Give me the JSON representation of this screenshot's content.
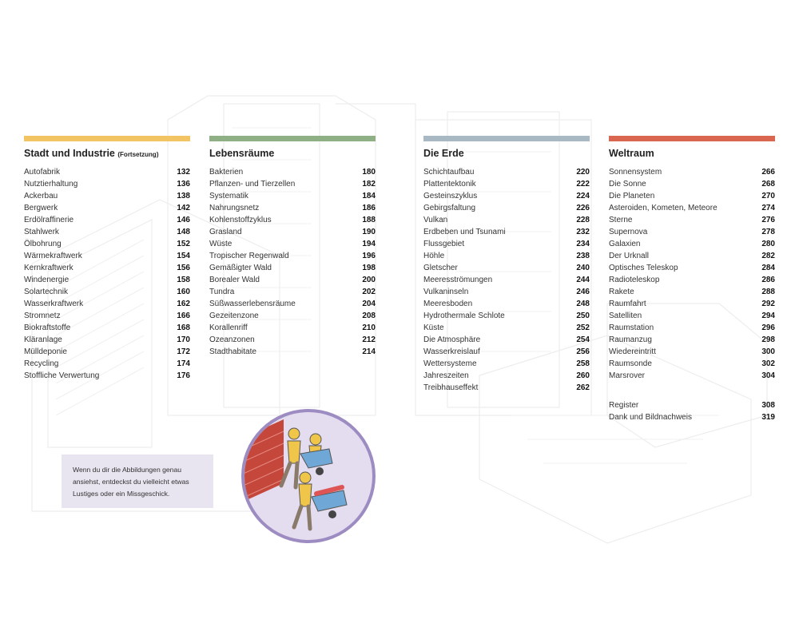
{
  "colors": {
    "stadt": "#f2c463",
    "lebensraeume": "#8fb085",
    "erde": "#a9b9c4",
    "weltraum": "#d9664f",
    "note_bg": "#e8e4f0",
    "circle_border": "#9d8cc2",
    "circle_fill": "#e4dcef"
  },
  "sections": [
    {
      "title": "Stadt und Industrie",
      "subtitle": "(Fortsetzung)",
      "entries": [
        {
          "label": "Autofabrik",
          "page": "132"
        },
        {
          "label": "Nutztierhaltung",
          "page": "136"
        },
        {
          "label": "Ackerbau",
          "page": "138"
        },
        {
          "label": "Bergwerk",
          "page": "142"
        },
        {
          "label": "Erdölraffinerie",
          "page": "146"
        },
        {
          "label": "Stahlwerk",
          "page": "148"
        },
        {
          "label": "Ölbohrung",
          "page": "152"
        },
        {
          "label": "Wärmekraftwerk",
          "page": "154"
        },
        {
          "label": "Kernkraftwerk",
          "page": "156"
        },
        {
          "label": "Windenergie",
          "page": "158"
        },
        {
          "label": "Solartechnik",
          "page": "160"
        },
        {
          "label": "Wasserkraftwerk",
          "page": "162"
        },
        {
          "label": "Stromnetz",
          "page": "166"
        },
        {
          "label": "Biokraftstoffe",
          "page": "168"
        },
        {
          "label": "Kläranlage",
          "page": "170"
        },
        {
          "label": "Mülldeponie",
          "page": "172"
        },
        {
          "label": "Recycling",
          "page": "174"
        },
        {
          "label": "Stoffliche Verwertung",
          "page": "176"
        }
      ]
    },
    {
      "title": "Lebensräume",
      "entries": [
        {
          "label": "Bakterien",
          "page": "180"
        },
        {
          "label": "Pflanzen- und Tierzellen",
          "page": "182"
        },
        {
          "label": "Systematik",
          "page": "184"
        },
        {
          "label": "Nahrungsnetz",
          "page": "186"
        },
        {
          "label": "Kohlenstoffzyklus",
          "page": "188"
        },
        {
          "label": "Grasland",
          "page": "190"
        },
        {
          "label": "Wüste",
          "page": "194"
        },
        {
          "label": "Tropischer Regenwald",
          "page": "196"
        },
        {
          "label": "Gemäßigter Wald",
          "page": "198"
        },
        {
          "label": "Borealer Wald",
          "page": "200"
        },
        {
          "label": "Tundra",
          "page": "202"
        },
        {
          "label": "Süßwasserlebensräume",
          "page": "204"
        },
        {
          "label": "Gezeitenzone",
          "page": "208"
        },
        {
          "label": "Korallenriff",
          "page": "210"
        },
        {
          "label": "Ozeanzonen",
          "page": "212"
        },
        {
          "label": "Stadthabitate",
          "page": "214"
        }
      ]
    },
    {
      "title": "Die Erde",
      "entries": [
        {
          "label": "Schichtaufbau",
          "page": "220"
        },
        {
          "label": "Plattentektonik",
          "page": "222"
        },
        {
          "label": "Gesteinszyklus",
          "page": "224"
        },
        {
          "label": "Gebirgsfaltung",
          "page": "226"
        },
        {
          "label": "Vulkan",
          "page": "228"
        },
        {
          "label": "Erdbeben und Tsunami",
          "page": "232"
        },
        {
          "label": "Flussgebiet",
          "page": "234"
        },
        {
          "label": "Höhle",
          "page": "238"
        },
        {
          "label": "Gletscher",
          "page": "240"
        },
        {
          "label": "Meeresströmungen",
          "page": "244"
        },
        {
          "label": "Vulkaninseln",
          "page": "246"
        },
        {
          "label": "Meeresboden",
          "page": "248"
        },
        {
          "label": "Hydrothermale Schlote",
          "page": "250"
        },
        {
          "label": "Küste",
          "page": "252"
        },
        {
          "label": "Die Atmosphäre",
          "page": "254"
        },
        {
          "label": "Wasserkreislauf",
          "page": "256"
        },
        {
          "label": "Wettersysteme",
          "page": "258"
        },
        {
          "label": "Jahreszeiten",
          "page": "260"
        },
        {
          "label": "Treibhauseffekt",
          "page": "262"
        }
      ]
    },
    {
      "title": "Weltraum",
      "entries": [
        {
          "label": "Sonnensystem",
          "page": "266"
        },
        {
          "label": "Die Sonne",
          "page": "268"
        },
        {
          "label": "Die Planeten",
          "page": "270"
        },
        {
          "label": "Asteroiden, Kometen, Meteore",
          "page": "274"
        },
        {
          "label": "Sterne",
          "page": "276"
        },
        {
          "label": "Supernova",
          "page": "278"
        },
        {
          "label": "Galaxien",
          "page": "280"
        },
        {
          "label": "Der Urknall",
          "page": "282"
        },
        {
          "label": "Optisches Teleskop",
          "page": "284"
        },
        {
          "label": "Radioteleskop",
          "page": "286"
        },
        {
          "label": "Rakete",
          "page": "288"
        },
        {
          "label": "Raumfahrt",
          "page": "292"
        },
        {
          "label": "Satelliten",
          "page": "294"
        },
        {
          "label": "Raumstation",
          "page": "296"
        },
        {
          "label": "Raumanzug",
          "page": "298"
        },
        {
          "label": "Wiedereintritt",
          "page": "300"
        },
        {
          "label": "Raumsonde",
          "page": "302"
        },
        {
          "label": "Marsrover",
          "page": "304"
        }
      ],
      "extra_entries": [
        {
          "label": "Register",
          "page": "308"
        },
        {
          "label": "Dank und Bildnachweis",
          "page": "319"
        }
      ]
    }
  ],
  "note": {
    "text": "Wenn du dir die Abbildungen genau ansiehst, entdeckst du vielleicht etwas Lustiges oder ein Missgeschick."
  },
  "illustration": {
    "icon": "workers-carrying-wheelbarrow-icon"
  }
}
